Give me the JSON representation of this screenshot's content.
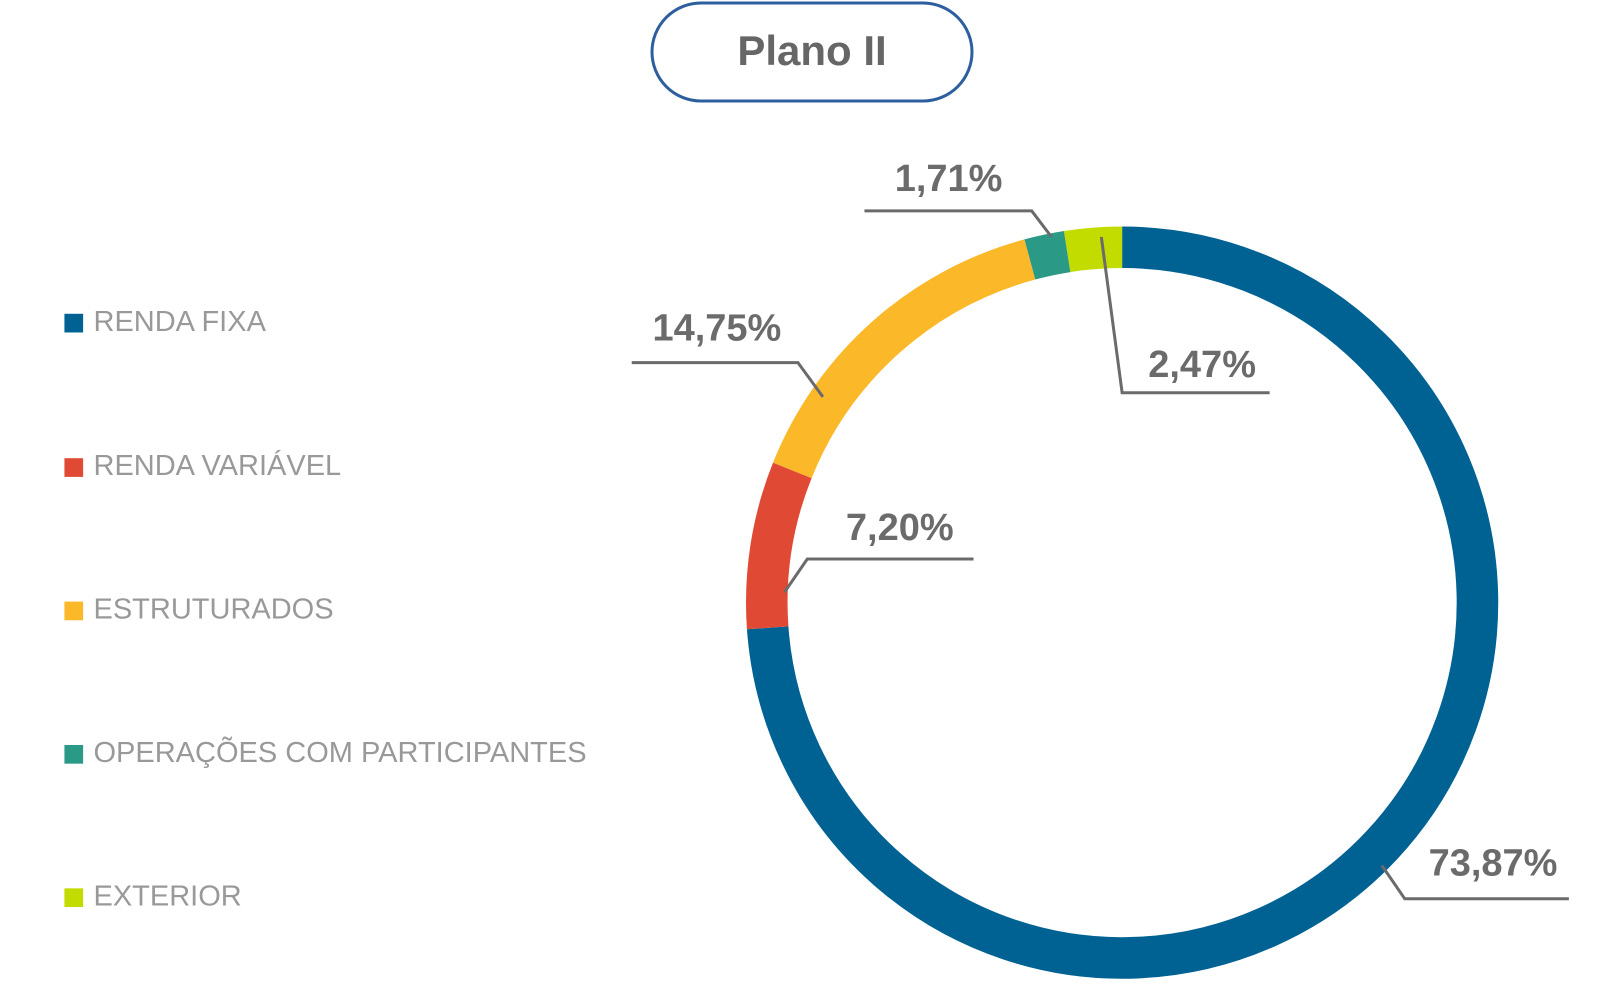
{
  "chart_data": {
    "type": "donut",
    "title": "Plano II",
    "categories": [
      "RENDA FIXA",
      "RENDA VARIÁVEL",
      "ESTRUTURADOS",
      "OPERAÇÕES COM PARTICIPANTES",
      "EXTERIOR"
    ],
    "values": [
      73.87,
      7.2,
      14.75,
      1.71,
      2.47
    ],
    "value_labels": [
      "73,87%",
      "7,20%",
      "14,75%",
      "1,71%",
      "2,47%"
    ],
    "colors": [
      "#006293",
      "#e04a35",
      "#fbb829",
      "#2a9a87",
      "#c3dc00"
    ],
    "legend": "left"
  }
}
